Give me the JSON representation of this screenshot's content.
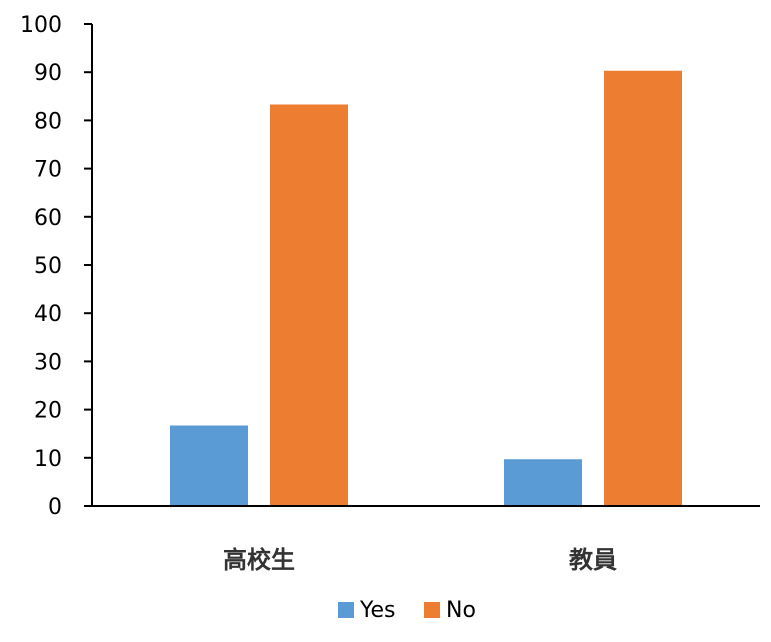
{
  "chart_data": {
    "type": "bar",
    "categories": [
      "高校生",
      "教員"
    ],
    "series": [
      {
        "name": "Yes",
        "values": [
          16.7,
          9.7
        ],
        "color": "#5b9bd5"
      },
      {
        "name": "No",
        "values": [
          83.3,
          90.3
        ],
        "color": "#ed7d31"
      }
    ],
    "ylim": [
      0,
      100
    ],
    "yticks": [
      0,
      10,
      20,
      30,
      40,
      50,
      60,
      70,
      80,
      90,
      100
    ],
    "grid": false,
    "legend_position": "bottom"
  }
}
